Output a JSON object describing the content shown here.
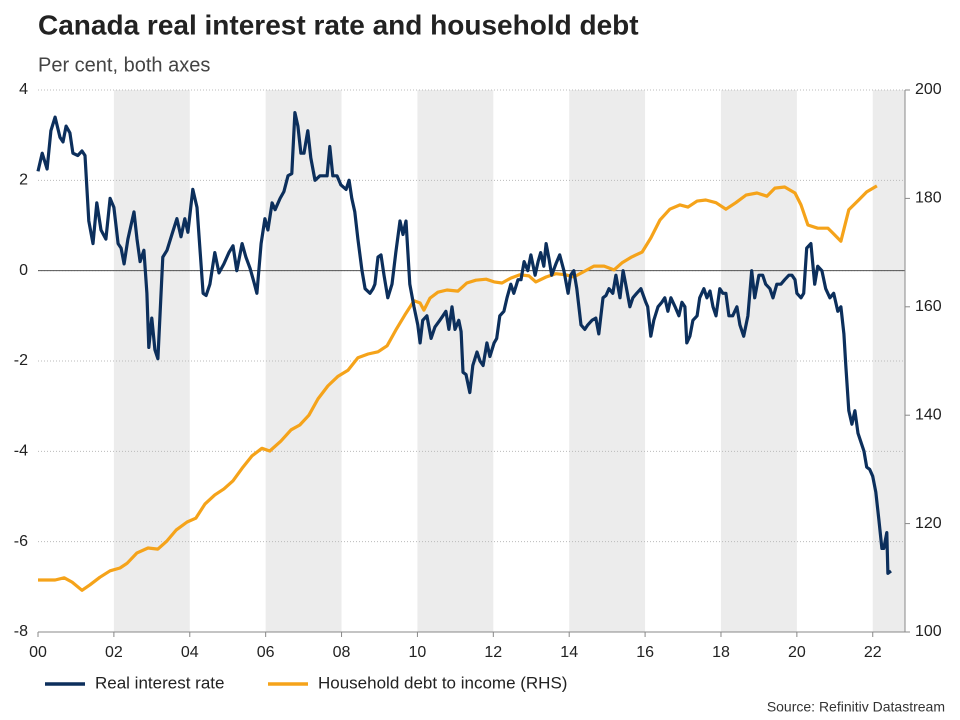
{
  "chart_data": {
    "type": "line",
    "title": "Canada real interest rate and household debt",
    "subtitle": "Per cent, both axes",
    "source": "Source: Refinitiv Datastream",
    "xlim": [
      0,
      22.85
    ],
    "xticks": [
      {
        "value": 0,
        "label": "00"
      },
      {
        "value": 2,
        "label": "02"
      },
      {
        "value": 4,
        "label": "04"
      },
      {
        "value": 6,
        "label": "06"
      },
      {
        "value": 8,
        "label": "08"
      },
      {
        "value": 10,
        "label": "10"
      },
      {
        "value": 12,
        "label": "12"
      },
      {
        "value": 14,
        "label": "14"
      },
      {
        "value": 16,
        "label": "16"
      },
      {
        "value": 18,
        "label": "18"
      },
      {
        "value": 20,
        "label": "20"
      },
      {
        "value": 22,
        "label": "22"
      }
    ],
    "ylim": [
      -8,
      4
    ],
    "yticks": [
      -8,
      -6,
      -4,
      -2,
      0,
      2,
      4
    ],
    "y2lim": [
      100,
      200
    ],
    "y2ticks": [
      100,
      120,
      140,
      160,
      180,
      200
    ],
    "grid": true,
    "legend": "bottom",
    "series": [
      {
        "name": "Real interest rate",
        "color": "#0c2f5c",
        "x": [
          0,
          0.11,
          0.24,
          0.34,
          0.45,
          0.58,
          0.66,
          0.74,
          0.84,
          0.92,
          1.05,
          1.16,
          1.24,
          1.34,
          1.45,
          1.55,
          1.66,
          1.79,
          1.9,
          2,
          2.11,
          2.19,
          2.27,
          2.37,
          2.53,
          2.61,
          2.69,
          2.79,
          2.87,
          2.92,
          3,
          3.08,
          3.16,
          3.29,
          3.4,
          3.53,
          3.66,
          3.77,
          3.87,
          3.95,
          4.08,
          4.19,
          4.35,
          4.43,
          4.53,
          4.66,
          4.77,
          4.9,
          5.03,
          5.14,
          5.24,
          5.38,
          5.48,
          5.59,
          5.69,
          5.77,
          5.88,
          5.98,
          6.06,
          6.17,
          6.25,
          6.38,
          6.48,
          6.59,
          6.69,
          6.77,
          6.85,
          6.93,
          7.01,
          7.11,
          7.19,
          7.3,
          7.43,
          7.54,
          7.62,
          7.69,
          7.77,
          7.88,
          7.98,
          8.12,
          8.2,
          8.27,
          8.35,
          8.43,
          8.54,
          8.62,
          8.75,
          8.83,
          8.88,
          8.96,
          9.04,
          9.12,
          9.22,
          9.33,
          9.43,
          9.54,
          9.62,
          9.7,
          9.75,
          9.8,
          9.91,
          10.01,
          10.07,
          10.14,
          10.25,
          10.36,
          10.46,
          10.59,
          10.67,
          10.75,
          10.83,
          10.91,
          10.99,
          11.09,
          11.15,
          11.2,
          11.28,
          11.38,
          11.46,
          11.57,
          11.65,
          11.73,
          11.83,
          11.91,
          12.02,
          12.09,
          12.17,
          12.28,
          12.36,
          12.46,
          12.54,
          12.65,
          12.73,
          12.81,
          12.91,
          12.99,
          13.1,
          13.18,
          13.25,
          13.33,
          13.39,
          13.47,
          13.54,
          13.65,
          13.75,
          13.86,
          13.97,
          14.04,
          14.12,
          14.2,
          14.31,
          14.41,
          14.49,
          14.6,
          14.7,
          14.78,
          14.89,
          14.97,
          15.05,
          15.15,
          15.23,
          15.34,
          15.42,
          15.49,
          15.6,
          15.68,
          15.78,
          15.89,
          16.02,
          16.07,
          16.15,
          16.23,
          16.34,
          16.44,
          16.52,
          16.6,
          16.68,
          16.79,
          16.89,
          16.97,
          17.05,
          17.1,
          17.18,
          17.26,
          17.37,
          17.44,
          17.55,
          17.63,
          17.71,
          17.79,
          17.87,
          17.97,
          18.05,
          18.13,
          18.21,
          18.31,
          18.42,
          18.5,
          18.6,
          18.71,
          18.81,
          18.89,
          19,
          19.1,
          19.18,
          19.29,
          19.37,
          19.47,
          19.58,
          19.68,
          19.79,
          19.87,
          19.95,
          20,
          20.11,
          20.18,
          20.26,
          20.37,
          20.47,
          20.55,
          20.66,
          20.76,
          20.87,
          20.97,
          21.08,
          21.16,
          21.24,
          21.29,
          21.37,
          21.45,
          21.53,
          21.61,
          21.69,
          21.77,
          21.84,
          21.92,
          22,
          22.08,
          22.16,
          22.24,
          22.29,
          22.37,
          22.4,
          22.48
        ],
        "values": [
          2.2,
          2.6,
          2.25,
          3.1,
          3.4,
          2.95,
          2.85,
          3.2,
          3.05,
          2.6,
          2.55,
          2.65,
          2.55,
          1.1,
          0.6,
          1.5,
          0.9,
          0.7,
          1.6,
          1.4,
          0.6,
          0.5,
          0.15,
          0.7,
          1.3,
          0.7,
          0.2,
          0.45,
          -0.5,
          -1.7,
          -1.05,
          -1.75,
          -1.95,
          0.3,
          0.45,
          0.8,
          1.15,
          0.75,
          1.15,
          0.85,
          1.8,
          1.4,
          -0.5,
          -0.55,
          -0.3,
          0.4,
          -0.05,
          0.15,
          0.4,
          0.55,
          0,
          0.6,
          0.3,
          0.05,
          -0.25,
          -0.5,
          0.6,
          1.15,
          0.9,
          1.5,
          1.35,
          1.6,
          1.75,
          2.1,
          2.15,
          3.5,
          3.2,
          2.6,
          2.6,
          3.1,
          2.5,
          2,
          2.1,
          2.1,
          2.1,
          2.75,
          2.1,
          2.1,
          1.9,
          1.8,
          2,
          1.6,
          1.3,
          0.7,
          0,
          -0.4,
          -0.5,
          -0.4,
          -0.3,
          0.3,
          0.35,
          -0.1,
          -0.6,
          -0.3,
          0.4,
          1.1,
          0.8,
          1.1,
          0.4,
          -0.3,
          -0.8,
          -1.2,
          -1.6,
          -1.1,
          -1,
          -1.5,
          -1.25,
          -1.1,
          -1,
          -0.9,
          -1.3,
          -0.8,
          -1.3,
          -1.1,
          -1.35,
          -2.25,
          -2.3,
          -2.7,
          -2.1,
          -1.8,
          -2,
          -2.1,
          -1.6,
          -1.9,
          -1.6,
          -1.5,
          -1,
          -0.9,
          -0.6,
          -0.3,
          -0.5,
          -0.2,
          -0.2,
          0.2,
          0,
          0.35,
          -0.1,
          0.2,
          0.4,
          0.1,
          0.6,
          0.25,
          -0.1,
          0.15,
          0.35,
          0,
          -0.5,
          -0.1,
          0,
          -0.4,
          -1.2,
          -1.3,
          -1.2,
          -1.1,
          -1.05,
          -1.4,
          -0.6,
          -0.55,
          -0.4,
          -0.5,
          -0.1,
          -0.6,
          0,
          -0.3,
          -0.8,
          -0.6,
          -0.5,
          -0.4,
          -0.7,
          -0.8,
          -1.45,
          -1.1,
          -0.8,
          -0.7,
          -0.6,
          -0.9,
          -0.6,
          -0.8,
          -1,
          -0.7,
          -0.8,
          -1.6,
          -1.45,
          -1.1,
          -1,
          -0.6,
          -0.4,
          -0.6,
          -0.45,
          -0.8,
          -1,
          -0.4,
          -0.5,
          -0.5,
          -1,
          -1,
          -0.8,
          -1.2,
          -1.45,
          -1,
          0,
          -0.6,
          -0.1,
          -0.1,
          -0.3,
          -0.4,
          -0.6,
          -0.3,
          -0.3,
          -0.2,
          -0.1,
          -0.1,
          -0.2,
          -0.5,
          -0.6,
          -0.5,
          0.5,
          0.6,
          -0.3,
          0.1,
          0,
          -0.4,
          -0.6,
          -0.5,
          -0.9,
          -0.8,
          -1.4,
          -2.1,
          -3.1,
          -3.4,
          -3.1,
          -3.6,
          -3.8,
          -4,
          -4.35,
          -4.4,
          -4.55,
          -4.9,
          -5.5,
          -6.15,
          -6.15,
          -5.8,
          -6.7,
          -6.65
        ]
      },
      {
        "name": "Household debt to income (RHS)",
        "color": "#f5a31a",
        "axis": "y2",
        "x": [
          0,
          0.45,
          0.69,
          0.9,
          1.16,
          1.37,
          1.63,
          1.9,
          2.16,
          2.35,
          2.61,
          2.9,
          3.16,
          3.4,
          3.64,
          3.93,
          4.16,
          4.4,
          4.66,
          4.9,
          5.14,
          5.4,
          5.64,
          5.9,
          6.11,
          6.4,
          6.67,
          6.9,
          7.14,
          7.38,
          7.64,
          7.91,
          8.17,
          8.43,
          8.7,
          8.96,
          9.2,
          9.43,
          9.67,
          9.91,
          10.07,
          10.17,
          10.33,
          10.54,
          10.78,
          11.07,
          11.3,
          11.54,
          11.81,
          12.02,
          12.23,
          12.46,
          12.7,
          12.94,
          13.12,
          13.39,
          13.65,
          13.91,
          14.12,
          14.36,
          14.65,
          14.92,
          15.18,
          15.39,
          15.65,
          15.92,
          16.15,
          16.39,
          16.65,
          16.92,
          17.13,
          17.37,
          17.6,
          17.87,
          18.13,
          18.39,
          18.66,
          18.95,
          19.21,
          19.42,
          19.68,
          19.95,
          20.11,
          20.29,
          20.55,
          20.82,
          20.95,
          21.16,
          21.37,
          21.63,
          21.84,
          22.11
        ],
        "values": [
          109.6,
          109.6,
          110,
          109.2,
          107.7,
          108.7,
          110.1,
          111.3,
          111.8,
          112.7,
          114.6,
          115.5,
          115.3,
          116.8,
          118.8,
          120.3,
          121,
          123.6,
          125.3,
          126.4,
          127.9,
          130.4,
          132.5,
          133.9,
          133.4,
          135.2,
          137.3,
          138.2,
          140,
          143,
          145.4,
          147.2,
          148.3,
          150.6,
          151.3,
          151.7,
          152.8,
          155.7,
          158.5,
          161.1,
          160.7,
          159.4,
          161.6,
          162.7,
          163.1,
          162.9,
          164.4,
          164.9,
          165.1,
          164.6,
          164.4,
          165.3,
          165.9,
          165.7,
          164.6,
          165.5,
          166.1,
          165.9,
          165.5,
          166.4,
          167.5,
          167.5,
          166.8,
          168.1,
          169.2,
          170.1,
          172.7,
          176,
          178,
          178.8,
          178.4,
          179.5,
          179.7,
          179.2,
          178,
          179.2,
          180.6,
          181,
          180.4,
          181.9,
          182.1,
          181,
          178.8,
          175.1,
          174.5,
          174.5,
          173.6,
          172.1,
          177.9,
          179.7,
          181.2,
          182.3
        ]
      }
    ]
  }
}
